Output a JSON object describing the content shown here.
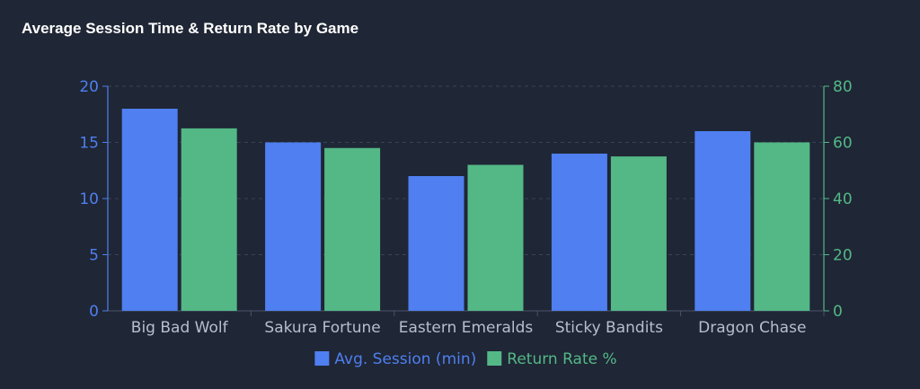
{
  "chart_data": {
    "type": "bar",
    "title": "Average Session Time & Return Rate by Game",
    "categories": [
      "Big Bad Wolf",
      "Sakura Fortune",
      "Eastern Emeralds",
      "Sticky Bandits",
      "Dragon Chase"
    ],
    "series": [
      {
        "name": "Avg. Session (min)",
        "axis": "left",
        "color": "#4f7ff0",
        "values": [
          18,
          15,
          12,
          14,
          16
        ]
      },
      {
        "name": "Return Rate %",
        "axis": "right",
        "color": "#53b886",
        "values": [
          65,
          58,
          52,
          55,
          60
        ]
      }
    ],
    "y_left": {
      "ylim": [
        0,
        20
      ],
      "ticks": [
        0,
        5,
        10,
        15,
        20
      ],
      "color": "#4f7ff0"
    },
    "y_right": {
      "ylim": [
        0,
        80
      ],
      "ticks": [
        0,
        20,
        40,
        60,
        80
      ],
      "color": "#53b886"
    },
    "grid": true,
    "legend": "bottom-center"
  }
}
